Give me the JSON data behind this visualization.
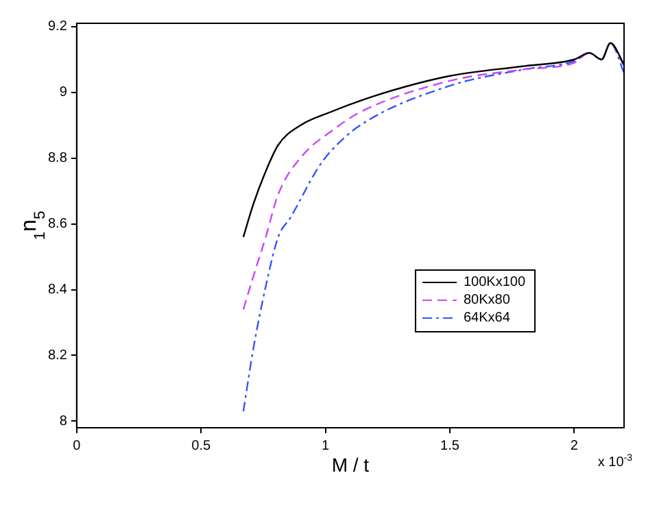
{
  "chart_data": {
    "type": "line",
    "xlabel": "M / t",
    "ylabel": "$_{1}$n$_{5}$",
    "xlim": [
      0,
      2.2
    ],
    "xticks": [
      0,
      0.5,
      1,
      1.5,
      2
    ],
    "ylim": [
      7.98,
      9.21
    ],
    "yticks": [
      8,
      8.2,
      8.4,
      8.6,
      8.8,
      9,
      9.2
    ],
    "grid": false,
    "legend": "center right",
    "marker": "none",
    "annotations": [
      "x 10$^{-3}$"
    ],
    "series": [
      {
        "name": "100Kx100",
        "color": "#000000",
        "line_style": "solid",
        "x": [
          0.67,
          0.71,
          0.76,
          0.81,
          0.9,
          1.02,
          1.2,
          1.5,
          1.8,
          2.0,
          2.06,
          2.11,
          2.145,
          2.2
        ],
        "values": [
          8.56,
          8.66,
          8.76,
          8.84,
          8.9,
          8.94,
          8.99,
          9.05,
          9.08,
          9.1,
          9.12,
          9.1,
          9.15,
          9.085
        ]
      },
      {
        "name": "80Kx80",
        "color": "#cc44ff",
        "line_style": "dashed",
        "x": [
          0.67,
          0.71,
          0.76,
          0.81,
          0.91,
          1.02,
          1.14,
          1.5,
          1.8,
          2.0,
          2.06,
          2.11,
          2.145,
          2.2
        ],
        "values": [
          8.34,
          8.44,
          8.56,
          8.69,
          8.81,
          8.88,
          8.94,
          9.035,
          9.07,
          9.09,
          9.12,
          9.1,
          9.15,
          9.08
        ]
      },
      {
        "name": "64Kx64",
        "color": "#3355ff",
        "line_style": "dashdot",
        "x": [
          0.67,
          0.71,
          0.76,
          0.81,
          0.86,
          0.97,
          1.02,
          1.14,
          1.5,
          1.8,
          2.0,
          2.06,
          2.11,
          2.145,
          2.2
        ],
        "values": [
          8.03,
          8.22,
          8.41,
          8.56,
          8.62,
          8.77,
          8.82,
          8.9,
          9.02,
          9.07,
          9.095,
          9.12,
          9.1,
          9.15,
          9.06
        ]
      }
    ]
  }
}
